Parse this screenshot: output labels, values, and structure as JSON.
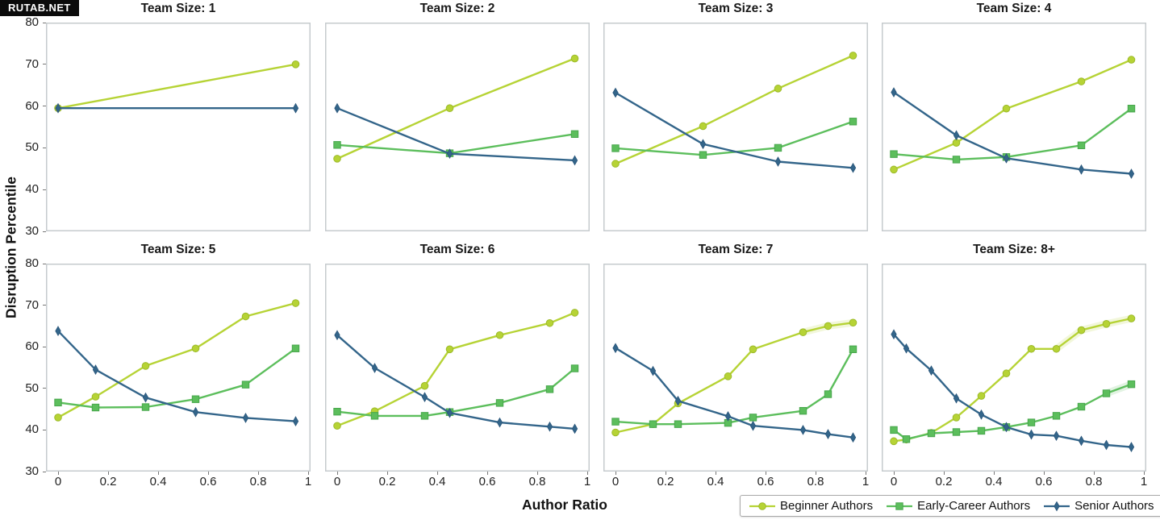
{
  "watermark": "RUTAB.NET",
  "axes": {
    "x_label": "Author Ratio",
    "y_label": "Disruption Percentile",
    "x_tick_labels": [
      "0",
      "0.2",
      "0.4",
      "0.6",
      "0.8",
      "1"
    ],
    "x_tick_values": [
      0,
      0.2,
      0.4,
      0.6,
      0.8,
      1
    ],
    "y_tick_labels": [
      "80",
      "70",
      "60",
      "50",
      "40",
      "30"
    ],
    "y_tick_values": [
      80,
      70,
      60,
      50,
      40,
      30
    ],
    "ylim": [
      30,
      80
    ],
    "xlim": [
      0,
      1
    ],
    "grid": "off",
    "legend_position": "bottom-right"
  },
  "colors": {
    "beginner": "#b6d335",
    "beginner_edge": "#9cba2a",
    "early": "#5cbe5c",
    "early_edge": "#47a64c",
    "senior": "#33658a",
    "senior_edge": "#2a567a",
    "panel_border": "#c6cbce",
    "text": "#1c1c1c"
  },
  "legend": {
    "items": [
      {
        "label": "Beginner Authors",
        "marker": "circle",
        "color": "#b6d335"
      },
      {
        "label": "Early-Career Authors",
        "marker": "square",
        "color": "#5cbe5c"
      },
      {
        "label": "Senior Authors",
        "marker": "diamond",
        "color": "#33658a"
      }
    ]
  },
  "chart_data": [
    {
      "type": "line",
      "title": "Team Size: 1",
      "series": [
        {
          "name": "Beginner Authors",
          "marker": "circle",
          "x": [
            0,
            0.95
          ],
          "y": [
            59.5,
            70.0
          ]
        },
        {
          "name": "Senior Authors",
          "marker": "diamond",
          "x": [
            0,
            0.95
          ],
          "y": [
            59.5,
            59.5
          ]
        }
      ]
    },
    {
      "type": "line",
      "title": "Team Size: 2",
      "series": [
        {
          "name": "Beginner Authors",
          "marker": "circle",
          "x": [
            0,
            0.45,
            0.95
          ],
          "y": [
            47.4,
            59.5,
            71.4
          ]
        },
        {
          "name": "Early-Career Authors",
          "marker": "square",
          "x": [
            0,
            0.45,
            0.95
          ],
          "y": [
            50.7,
            48.7,
            53.3
          ]
        },
        {
          "name": "Senior Authors",
          "marker": "diamond",
          "x": [
            0,
            0.45,
            0.95
          ],
          "y": [
            59.5,
            48.6,
            47.0
          ]
        }
      ]
    },
    {
      "type": "line",
      "title": "Team Size: 3",
      "series": [
        {
          "name": "Beginner Authors",
          "marker": "circle",
          "x": [
            0,
            0.35,
            0.65,
            0.95
          ],
          "y": [
            46.2,
            55.2,
            64.2,
            72.1
          ]
        },
        {
          "name": "Early-Career Authors",
          "marker": "square",
          "x": [
            0,
            0.35,
            0.65,
            0.95
          ],
          "y": [
            49.9,
            48.3,
            50.0,
            56.3
          ]
        },
        {
          "name": "Senior Authors",
          "marker": "diamond",
          "x": [
            0,
            0.35,
            0.65,
            0.95
          ],
          "y": [
            63.2,
            50.9,
            46.7,
            45.2
          ]
        }
      ]
    },
    {
      "type": "line",
      "title": "Team Size: 4",
      "series": [
        {
          "name": "Beginner Authors",
          "marker": "circle",
          "x": [
            0,
            0.25,
            0.45,
            0.75,
            0.95
          ],
          "y": [
            44.8,
            51.2,
            59.4,
            65.9,
            71.1
          ]
        },
        {
          "name": "Early-Career Authors",
          "marker": "square",
          "x": [
            0,
            0.25,
            0.45,
            0.75,
            0.95
          ],
          "y": [
            48.5,
            47.2,
            47.8,
            50.6,
            59.4
          ]
        },
        {
          "name": "Senior Authors",
          "marker": "diamond",
          "x": [
            0,
            0.25,
            0.45,
            0.75,
            0.95
          ],
          "y": [
            63.3,
            53.0,
            47.5,
            44.8,
            43.8
          ]
        }
      ]
    },
    {
      "type": "line",
      "title": "Team Size: 5",
      "series": [
        {
          "name": "Beginner Authors",
          "marker": "circle",
          "x": [
            0,
            0.15,
            0.35,
            0.55,
            0.75,
            0.95
          ],
          "y": [
            43.0,
            48.0,
            55.4,
            59.6,
            67.3,
            70.5
          ]
        },
        {
          "name": "Early-Career Authors",
          "marker": "square",
          "x": [
            0,
            0.15,
            0.35,
            0.55,
            0.75,
            0.95
          ],
          "y": [
            46.6,
            45.4,
            45.5,
            47.4,
            50.9,
            59.6
          ]
        },
        {
          "name": "Senior Authors",
          "marker": "diamond",
          "x": [
            0,
            0.15,
            0.35,
            0.55,
            0.75,
            0.95
          ],
          "y": [
            63.8,
            54.5,
            47.8,
            44.3,
            42.9,
            42.1
          ]
        }
      ]
    },
    {
      "type": "line",
      "title": "Team Size: 6",
      "series": [
        {
          "name": "Beginner Authors",
          "marker": "circle",
          "x": [
            0,
            0.15,
            0.35,
            0.45,
            0.65,
            0.85,
            0.95
          ],
          "y": [
            41.0,
            44.5,
            50.6,
            59.4,
            62.8,
            65.7,
            68.2
          ]
        },
        {
          "name": "Early-Career Authors",
          "marker": "square",
          "x": [
            0,
            0.15,
            0.35,
            0.45,
            0.65,
            0.85,
            0.95
          ],
          "y": [
            44.4,
            43.4,
            43.4,
            44.3,
            46.5,
            49.8,
            54.8
          ]
        },
        {
          "name": "Senior Authors",
          "marker": "diamond",
          "x": [
            0,
            0.15,
            0.35,
            0.45,
            0.65,
            0.85,
            0.95
          ],
          "y": [
            62.8,
            54.9,
            47.9,
            44.1,
            41.8,
            40.8,
            40.3
          ]
        }
      ]
    },
    {
      "type": "line",
      "title": "Team Size: 7",
      "series": [
        {
          "name": "Beginner Authors",
          "marker": "circle",
          "ci_from": 5,
          "x": [
            0,
            0.15,
            0.25,
            0.45,
            0.55,
            0.75,
            0.85,
            0.95
          ],
          "y": [
            39.4,
            41.4,
            46.4,
            52.9,
            59.4,
            63.5,
            65.0,
            65.8
          ]
        },
        {
          "name": "Early-Career Authors",
          "marker": "square",
          "x": [
            0,
            0.15,
            0.25,
            0.45,
            0.55,
            0.75,
            0.85,
            0.95
          ],
          "y": [
            42.0,
            41.4,
            41.4,
            41.7,
            43.0,
            44.6,
            48.6,
            59.4
          ]
        },
        {
          "name": "Senior Authors",
          "marker": "diamond",
          "x": [
            0,
            0.15,
            0.25,
            0.45,
            0.55,
            0.75,
            0.85,
            0.95
          ],
          "y": [
            59.7,
            54.2,
            47.0,
            43.3,
            41.0,
            40.0,
            39.0,
            38.2
          ]
        }
      ]
    },
    {
      "type": "line",
      "title": "Team Size: 8+",
      "series": [
        {
          "name": "Beginner Authors",
          "marker": "circle",
          "ci_from": 7,
          "x": [
            0,
            0.05,
            0.15,
            0.25,
            0.35,
            0.45,
            0.55,
            0.65,
            0.75,
            0.85,
            0.95
          ],
          "y": [
            37.3,
            37.7,
            39.3,
            43.0,
            48.2,
            53.6,
            59.5,
            59.5,
            64.0,
            65.5,
            66.8
          ]
        },
        {
          "name": "Early-Career Authors",
          "marker": "square",
          "ci_from": 9,
          "x": [
            0,
            0.05,
            0.15,
            0.25,
            0.35,
            0.45,
            0.55,
            0.65,
            0.75,
            0.85,
            0.95
          ],
          "y": [
            40.0,
            37.8,
            39.2,
            39.5,
            39.8,
            40.7,
            41.8,
            43.4,
            45.6,
            48.8,
            51.0
          ]
        },
        {
          "name": "Senior Authors",
          "marker": "diamond",
          "x": [
            0,
            0.05,
            0.15,
            0.25,
            0.35,
            0.45,
            0.55,
            0.65,
            0.75,
            0.85,
            0.95
          ],
          "y": [
            63.0,
            59.6,
            54.3,
            47.6,
            43.7,
            40.7,
            38.9,
            38.6,
            37.4,
            36.4,
            35.9
          ]
        }
      ]
    }
  ]
}
